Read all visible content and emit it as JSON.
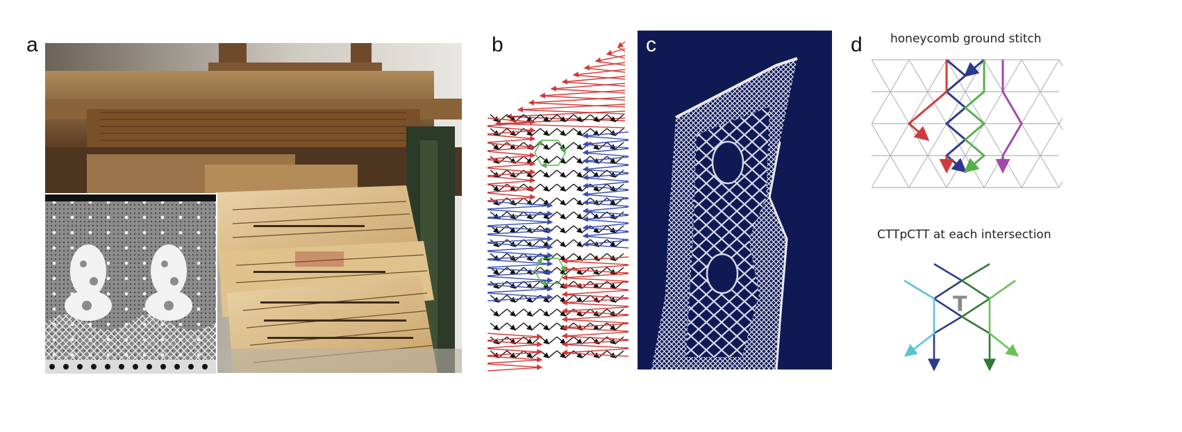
{
  "figure": {
    "panels": [
      {
        "letter": "a",
        "content": "photo"
      },
      {
        "letter": "b",
        "content": "diagram"
      },
      {
        "letter": "c",
        "content": "photo"
      },
      {
        "letter": "d",
        "content": "diagram"
      }
    ],
    "panel_d": {
      "caption_top": "honeycomb ground stitch",
      "caption_bottom": "CTTpCTT at each intersection",
      "pin_mark": "T"
    },
    "colors": {
      "red": "#d23a3a",
      "blue": "#2b3a8f",
      "green": "#55b04a",
      "dark_green": "#2f7a36",
      "purple": "#a24aa8",
      "cyan": "#5bc3d6",
      "grid": "#b5b5b5",
      "lace_background": "#0f1a55"
    }
  }
}
